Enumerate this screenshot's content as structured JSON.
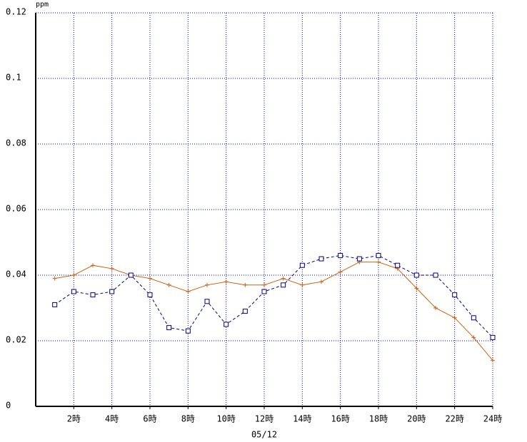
{
  "chart_data": {
    "type": "line",
    "y_unit": "ppm",
    "x_label": "05/12",
    "x": [
      1,
      2,
      3,
      4,
      5,
      6,
      7,
      8,
      9,
      10,
      11,
      12,
      13,
      14,
      15,
      16,
      17,
      18,
      19,
      20,
      21,
      22,
      23,
      24
    ],
    "xlim": [
      0,
      24
    ],
    "xticks": [
      {
        "value": 2,
        "label": "2時"
      },
      {
        "value": 4,
        "label": "4時"
      },
      {
        "value": 6,
        "label": "6時"
      },
      {
        "value": 8,
        "label": "8時"
      },
      {
        "value": 10,
        "label": "10時"
      },
      {
        "value": 12,
        "label": "12時"
      },
      {
        "value": 14,
        "label": "14時"
      },
      {
        "value": 16,
        "label": "16時"
      },
      {
        "value": 18,
        "label": "18時"
      },
      {
        "value": 20,
        "label": "20時"
      },
      {
        "value": 22,
        "label": "22時"
      },
      {
        "value": 24,
        "label": "24時"
      }
    ],
    "ylim": [
      0,
      0.12
    ],
    "yticks": [
      0,
      0.02,
      0.04,
      0.06,
      0.08,
      0.1,
      0.12
    ],
    "grid": true,
    "series": [
      {
        "color": "#c86414",
        "marker": "plus",
        "dashed": false,
        "values": [
          0.039,
          0.04,
          0.043,
          0.042,
          0.04,
          0.039,
          0.037,
          0.035,
          0.037,
          0.038,
          0.037,
          0.037,
          0.039,
          0.037,
          0.038,
          0.041,
          0.044,
          0.044,
          0.042,
          0.036,
          0.03,
          0.027,
          0.021,
          0.014
        ]
      },
      {
        "color": "#000080",
        "marker": "square",
        "dashed": true,
        "values": [
          0.031,
          0.035,
          0.034,
          0.035,
          0.04,
          0.034,
          0.024,
          0.023,
          0.032,
          0.025,
          0.029,
          0.035,
          0.037,
          0.043,
          0.045,
          0.046,
          0.045,
          0.046,
          0.043,
          0.04,
          0.04,
          0.034,
          0.027,
          0.021
        ]
      }
    ]
  }
}
